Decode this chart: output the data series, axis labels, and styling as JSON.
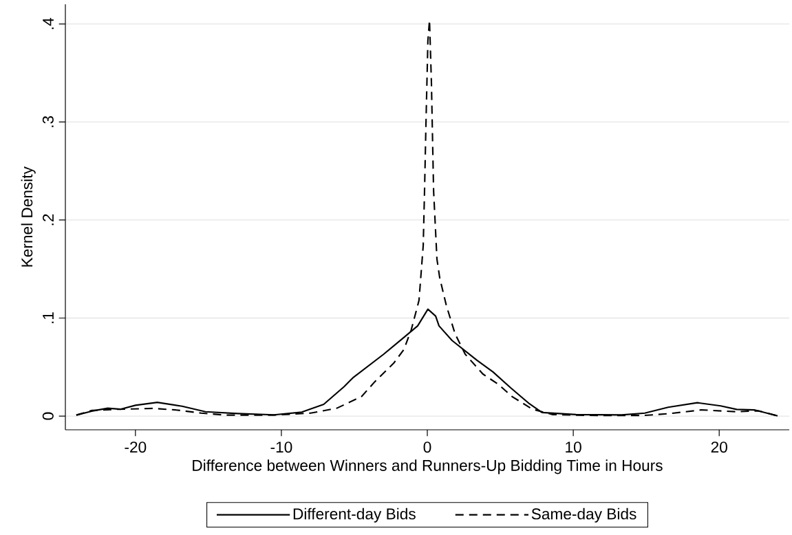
{
  "chart_data": {
    "type": "line",
    "xlabel": "Difference between Winners and Runners-Up Bidding Time in Hours",
    "ylabel": "Kernel Density",
    "xlim": [
      -24.8,
      24.8
    ],
    "ylim": [
      -0.014,
      0.42
    ],
    "xticks": [
      -20,
      -10,
      0,
      10,
      20
    ],
    "yticks": [
      0,
      {
        "value": 0.1,
        "label": ".1"
      },
      {
        "value": 0.2,
        "label": ".2"
      },
      {
        "value": 0.3,
        "label": ".3"
      },
      {
        "value": 0.4,
        "label": ".4"
      }
    ],
    "grid": "y",
    "legend": "bottom",
    "marker": "none",
    "series": [
      {
        "name": "Different-day Bids",
        "color": "#000000",
        "line_style": "solid",
        "x": [
          -24.05,
          -23.0,
          -21.9,
          -21.0,
          -20.0,
          -18.5,
          -16.8,
          -15.2,
          -13.0,
          -10.5,
          -8.6,
          -7.1,
          -5.7,
          -5.1,
          -3.0,
          -1.7,
          -0.66,
          0.04,
          0.57,
          0.8,
          1.7,
          3.4,
          4.5,
          5.7,
          7.0,
          7.86,
          10.2,
          13.3,
          14.9,
          16.5,
          18.5,
          20.1,
          21.2,
          22.4,
          24.0
        ],
        "values": [
          0.001,
          0.005,
          0.008,
          0.007,
          0.011,
          0.014,
          0.01,
          0.0044,
          0.0026,
          0.0013,
          0.004,
          0.012,
          0.03,
          0.039,
          0.063,
          0.079,
          0.092,
          0.109,
          0.102,
          0.092,
          0.077,
          0.057,
          0.045,
          0.029,
          0.0125,
          0.0036,
          0.0015,
          0.0012,
          0.003,
          0.009,
          0.0136,
          0.0104,
          0.0068,
          0.0063,
          0.0002
        ]
      },
      {
        "name": "Same-day Bids",
        "color": "#000000",
        "line_style": "dashed",
        "x": [
          -24.05,
          -23.0,
          -21.4,
          -18.8,
          -17.2,
          -15.5,
          -13.8,
          -10.5,
          -8.0,
          -6.2,
          -4.5,
          -3.6,
          -2.3,
          -1.6,
          -1.1,
          -0.57,
          -0.28,
          -0.19,
          -0.09,
          0.04,
          0.15,
          0.28,
          0.43,
          0.66,
          0.85,
          1.3,
          1.9,
          2.6,
          3.8,
          4.9,
          5.8,
          7.2,
          8.6,
          11.8,
          14.9,
          16.5,
          18.8,
          21.2,
          22.7,
          24.0
        ],
        "values": [
          0.001,
          0.0057,
          0.0068,
          0.0078,
          0.0062,
          0.003,
          0.001,
          0.001,
          0.003,
          0.008,
          0.02,
          0.035,
          0.054,
          0.068,
          0.088,
          0.118,
          0.174,
          0.23,
          0.3,
          0.383,
          0.404,
          0.341,
          0.23,
          0.16,
          0.141,
          0.113,
          0.084,
          0.063,
          0.043,
          0.032,
          0.02,
          0.007,
          0.0015,
          0.0005,
          0.0007,
          0.0024,
          0.0063,
          0.0044,
          0.0053,
          0.0002
        ]
      }
    ]
  }
}
